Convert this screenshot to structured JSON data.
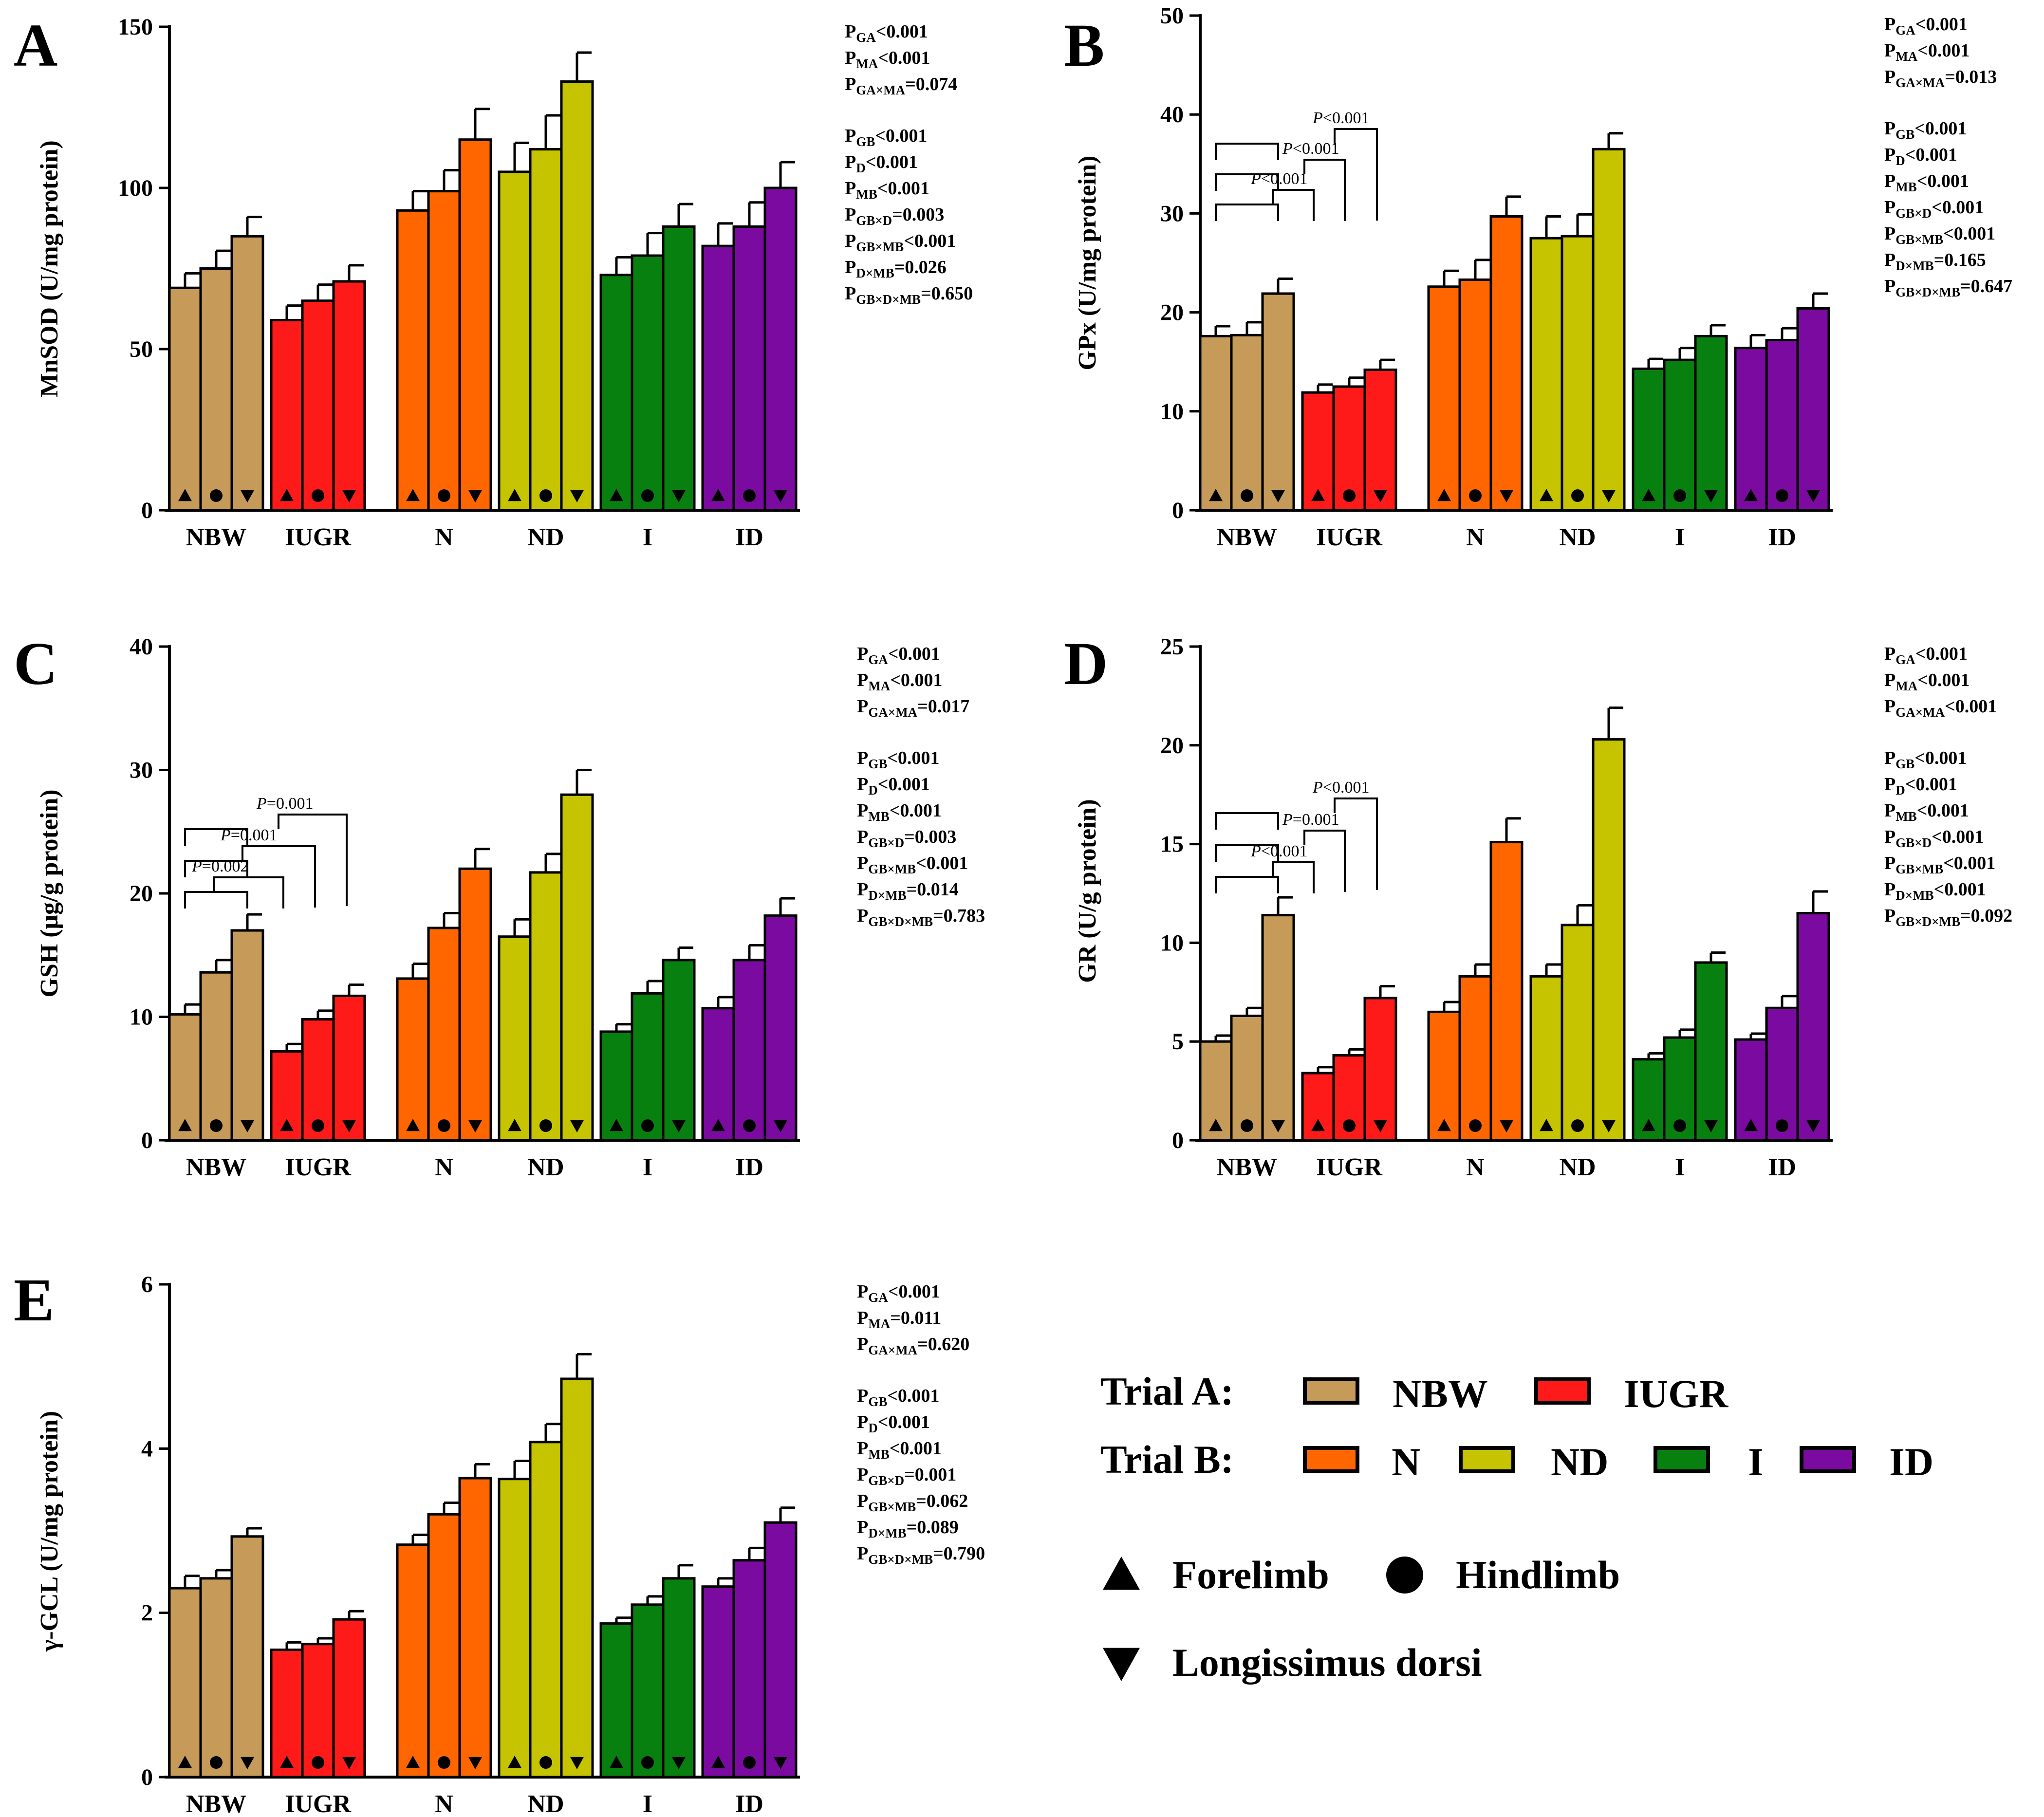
{
  "chart_data": [
    {
      "type": "bar",
      "panel_letter": "A",
      "ylabel": "MnSOD (U/mg protein)",
      "ylim": [
        0,
        150
      ],
      "ytick_labels": [
        "0",
        "50",
        "100",
        "150"
      ],
      "groups": [
        {
          "label": "NBW",
          "values": [
            69,
            75,
            85
          ],
          "errors": [
            4.5,
            5.5,
            6
          ]
        },
        {
          "label": "IUGR",
          "values": [
            59,
            65,
            71
          ],
          "errors": [
            4.5,
            5,
            5
          ]
        },
        {
          "label": "N",
          "values": [
            93,
            99,
            115
          ],
          "errors": [
            6,
            6.5,
            9.5
          ]
        },
        {
          "label": "ND",
          "values": [
            105,
            112,
            133
          ],
          "errors": [
            9,
            10.5,
            9
          ]
        },
        {
          "label": "I",
          "values": [
            73,
            79,
            88
          ],
          "errors": [
            5.5,
            7,
            7
          ]
        },
        {
          "label": "ID",
          "values": [
            82,
            88,
            100
          ],
          "errors": [
            7,
            7.5,
            8
          ]
        }
      ],
      "brackets": [],
      "stats": [
        [
          "P",
          "GA",
          "<0.001"
        ],
        [
          "P",
          "MA",
          "<0.001"
        ],
        [
          "P",
          "GA×MA",
          "=0.074"
        ],
        null,
        [
          "P",
          "GB",
          "<0.001"
        ],
        [
          "P",
          "D",
          "<0.001"
        ],
        [
          "P",
          "MB",
          "<0.001"
        ],
        [
          "P",
          "GB×D",
          "=0.003"
        ],
        [
          "P",
          "GB×MB",
          "<0.001"
        ],
        [
          "P",
          "D×MB",
          "=0.026"
        ],
        [
          "P",
          "GB×D×MB",
          "=0.650"
        ]
      ]
    },
    {
      "type": "bar",
      "panel_letter": "B",
      "ylabel": "GPx (U/mg protein)",
      "ylim": [
        0,
        50
      ],
      "ytick_labels": [
        "0",
        "10",
        "20",
        "30",
        "40",
        "50"
      ],
      "groups": [
        {
          "label": "NBW",
          "values": [
            17.6,
            17.7,
            21.9
          ],
          "errors": [
            1,
            1.3,
            1.5
          ]
        },
        {
          "label": "IUGR",
          "values": [
            11.9,
            12.5,
            14.2
          ],
          "errors": [
            0.8,
            0.9,
            1
          ]
        },
        {
          "label": "N",
          "values": [
            22.6,
            23.3,
            29.7
          ],
          "errors": [
            1.6,
            2,
            2
          ]
        },
        {
          "label": "ND",
          "values": [
            27.5,
            27.7,
            36.5
          ],
          "errors": [
            2.2,
            2.2,
            1.6
          ]
        },
        {
          "label": "I",
          "values": [
            14.3,
            15.2,
            17.6
          ],
          "errors": [
            1,
            1.2,
            1.1
          ]
        },
        {
          "label": "ID",
          "values": [
            16.4,
            17.2,
            20.4
          ],
          "errors": [
            1.3,
            1.2,
            1.5
          ]
        }
      ],
      "brackets": [
        {
          "text": "P<0.001",
          "p": "P",
          "rest": "<0.001"
        },
        {
          "text": "P<0.001",
          "p": "P",
          "rest": "<0.001"
        },
        {
          "text": "P<0.001",
          "p": "P",
          "rest": "<0.001"
        }
      ],
      "stats": [
        [
          "P",
          "GA",
          "<0.001"
        ],
        [
          "P",
          "MA",
          "<0.001"
        ],
        [
          "P",
          "GA×MA",
          "=0.013"
        ],
        null,
        [
          "P",
          "GB",
          "<0.001"
        ],
        [
          "P",
          "D",
          "<0.001"
        ],
        [
          "P",
          "MB",
          "<0.001"
        ],
        [
          "P",
          "GB×D",
          "<0.001"
        ],
        [
          "P",
          "GB×MB",
          "<0.001"
        ],
        [
          "P",
          "D×MB",
          "=0.165"
        ],
        [
          "P",
          "GB×D×MB",
          "=0.647"
        ]
      ]
    },
    {
      "type": "bar",
      "panel_letter": "C",
      "ylabel": "GSH (μg/g protein)",
      "ylim": [
        0,
        40
      ],
      "ytick_labels": [
        "0",
        "10",
        "20",
        "30",
        "40"
      ],
      "groups": [
        {
          "label": "NBW",
          "values": [
            10.2,
            13.6,
            17
          ],
          "errors": [
            0.8,
            1,
            1.3
          ]
        },
        {
          "label": "IUGR",
          "values": [
            7.2,
            9.8,
            11.7
          ],
          "errors": [
            0.6,
            0.7,
            0.9
          ]
        },
        {
          "label": "N",
          "values": [
            13.1,
            17.2,
            22
          ],
          "errors": [
            1.2,
            1.2,
            1.6
          ]
        },
        {
          "label": "ND",
          "values": [
            16.5,
            21.7,
            28
          ],
          "errors": [
            1.4,
            1.5,
            2
          ]
        },
        {
          "label": "I",
          "values": [
            8.8,
            11.9,
            14.6
          ],
          "errors": [
            0.6,
            1,
            1
          ]
        },
        {
          "label": "ID",
          "values": [
            10.7,
            14.6,
            18.2
          ],
          "errors": [
            0.9,
            1.2,
            1.4
          ]
        }
      ],
      "brackets": [
        {
          "text": "P=0.002",
          "p": "P",
          "rest": "=0.002"
        },
        {
          "text": "P=0.001",
          "p": "P",
          "rest": "=0.001"
        },
        {
          "text": "P=0.001",
          "p": "P",
          "rest": "=0.001"
        }
      ],
      "stats": [
        [
          "P",
          "GA",
          "<0.001"
        ],
        [
          "P",
          "MA",
          "<0.001"
        ],
        [
          "P",
          "GA×MA",
          "=0.017"
        ],
        null,
        [
          "P",
          "GB",
          "<0.001"
        ],
        [
          "P",
          "D",
          "<0.001"
        ],
        [
          "P",
          "MB",
          "<0.001"
        ],
        [
          "P",
          "GB×D",
          "=0.003"
        ],
        [
          "P",
          "GB×MB",
          "<0.001"
        ],
        [
          "P",
          "D×MB",
          "=0.014"
        ],
        [
          "P",
          "GB×D×MB",
          "=0.783"
        ]
      ]
    },
    {
      "type": "bar",
      "panel_letter": "D",
      "ylabel": "GR (U/g protein)",
      "ylim": [
        0,
        25
      ],
      "ytick_labels": [
        "0",
        "5",
        "10",
        "15",
        "20",
        "25"
      ],
      "groups": [
        {
          "label": "NBW",
          "values": [
            5,
            6.3,
            11.4
          ],
          "errors": [
            0.3,
            0.4,
            0.9
          ]
        },
        {
          "label": "IUGR",
          "values": [
            3.4,
            4.3,
            7.2
          ],
          "errors": [
            0.3,
            0.3,
            0.6
          ]
        },
        {
          "label": "N",
          "values": [
            6.5,
            8.3,
            15.1
          ],
          "errors": [
            0.5,
            0.6,
            1.2
          ]
        },
        {
          "label": "ND",
          "values": [
            8.3,
            10.9,
            20.3
          ],
          "errors": [
            0.6,
            1,
            1.6
          ]
        },
        {
          "label": "I",
          "values": [
            4.1,
            5.2,
            9
          ],
          "errors": [
            0.3,
            0.4,
            0.5
          ]
        },
        {
          "label": "ID",
          "values": [
            5.1,
            6.7,
            11.5
          ],
          "errors": [
            0.3,
            0.6,
            1.1
          ]
        }
      ],
      "brackets": [
        {
          "text": "P<0.001",
          "p": "P",
          "rest": "<0.001"
        },
        {
          "text": "P=0.001",
          "p": "P",
          "rest": "=0.001"
        },
        {
          "text": "P<0.001",
          "p": "P",
          "rest": "<0.001"
        }
      ],
      "stats": [
        [
          "P",
          "GA",
          "<0.001"
        ],
        [
          "P",
          "MA",
          "<0.001"
        ],
        [
          "P",
          "GA×MA",
          "<0.001"
        ],
        null,
        [
          "P",
          "GB",
          "<0.001"
        ],
        [
          "P",
          "D",
          "<0.001"
        ],
        [
          "P",
          "MB",
          "<0.001"
        ],
        [
          "P",
          "GB×D",
          "<0.001"
        ],
        [
          "P",
          "GB×MB",
          "<0.001"
        ],
        [
          "P",
          "D×MB",
          "<0.001"
        ],
        [
          "P",
          "GB×D×MB",
          "=0.092"
        ]
      ]
    },
    {
      "type": "bar",
      "panel_letter": "E",
      "ylabel": "γ-GCL (U/mg protein)",
      "ylim": [
        0,
        6
      ],
      "ytick_labels": [
        "0",
        "2",
        "4",
        "6"
      ],
      "groups": [
        {
          "label": "NBW",
          "values": [
            2.3,
            2.42,
            2.93
          ],
          "errors": [
            0.15,
            0.1,
            0.1
          ]
        },
        {
          "label": "IUGR",
          "values": [
            1.55,
            1.62,
            1.92
          ],
          "errors": [
            0.09,
            0.07,
            0.1
          ]
        },
        {
          "label": "N",
          "values": [
            2.83,
            3.2,
            3.64
          ],
          "errors": [
            0.12,
            0.14,
            0.17
          ]
        },
        {
          "label": "ND",
          "values": [
            3.63,
            4.08,
            4.85
          ],
          "errors": [
            0.22,
            0.22,
            0.3
          ]
        },
        {
          "label": "I",
          "values": [
            1.87,
            2.1,
            2.42
          ],
          "errors": [
            0.07,
            0.1,
            0.16
          ]
        },
        {
          "label": "ID",
          "values": [
            2.32,
            2.64,
            3.1
          ],
          "errors": [
            0.1,
            0.15,
            0.18
          ]
        }
      ],
      "brackets": [],
      "stats": [
        [
          "P",
          "GA",
          "<0.001"
        ],
        [
          "P",
          "MA",
          "=0.011"
        ],
        [
          "P",
          "GA×MA",
          "=0.620"
        ],
        null,
        [
          "P",
          "GB",
          "<0.001"
        ],
        [
          "P",
          "D",
          "<0.001"
        ],
        [
          "P",
          "MB",
          "<0.001"
        ],
        [
          "P",
          "GB×D",
          "=0.001"
        ],
        [
          "P",
          "GB×MB",
          "=0.062"
        ],
        [
          "P",
          "D×MB",
          "=0.089"
        ],
        [
          "P",
          "GB×D×MB",
          "=0.790"
        ]
      ]
    }
  ],
  "legend": {
    "trial_a_label": "Trial A:",
    "trial_b_label": "Trial B:",
    "trial_a_items": [
      {
        "label": "NBW",
        "color": "#c69a58"
      },
      {
        "label": "IUGR",
        "color": "#ff1a1a"
      }
    ],
    "trial_b_items": [
      {
        "label": "N",
        "color": "#ff6600"
      },
      {
        "label": "ND",
        "color": "#c6c400"
      },
      {
        "label": "I",
        "color": "#08800f"
      },
      {
        "label": "ID",
        "color": "#7b0aa0"
      }
    ],
    "markers": [
      {
        "shape": "triangle-up",
        "label": "Forelimb"
      },
      {
        "shape": "circle",
        "label": "Hindlimb"
      },
      {
        "shape": "triangle-down",
        "label": "Longissimus dorsi"
      }
    ]
  },
  "colors": {
    "NBW": "#c69a58",
    "IUGR": "#ff1a1a",
    "N": "#ff6600",
    "ND": "#c6c400",
    "I": "#08800f",
    "ID": "#7b0aa0"
  }
}
